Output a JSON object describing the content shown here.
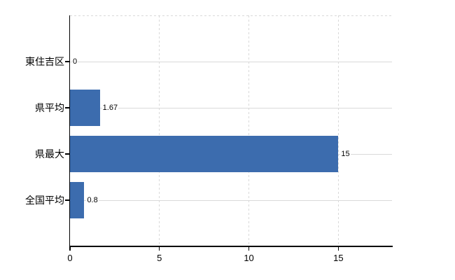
{
  "chart_data": {
    "type": "bar",
    "orientation": "horizontal",
    "title": "",
    "categories": [
      "東住吉区",
      "県平均",
      "県最大",
      "全国平均"
    ],
    "values": [
      0,
      1.67,
      15,
      0.8
    ],
    "value_labels": [
      "0",
      "1.67",
      "15",
      "0.8"
    ],
    "x_ticks": [
      0,
      5,
      10,
      15
    ],
    "x_tick_labels": [
      "0",
      "5",
      "10",
      "15"
    ],
    "xlim": [
      0,
      18
    ],
    "grid": true,
    "legend": false,
    "colors": {
      "bar": "#3c6cae",
      "grid": "#d9d9d9",
      "axis": "#000000",
      "text": "#000000",
      "background": "#ffffff"
    }
  }
}
